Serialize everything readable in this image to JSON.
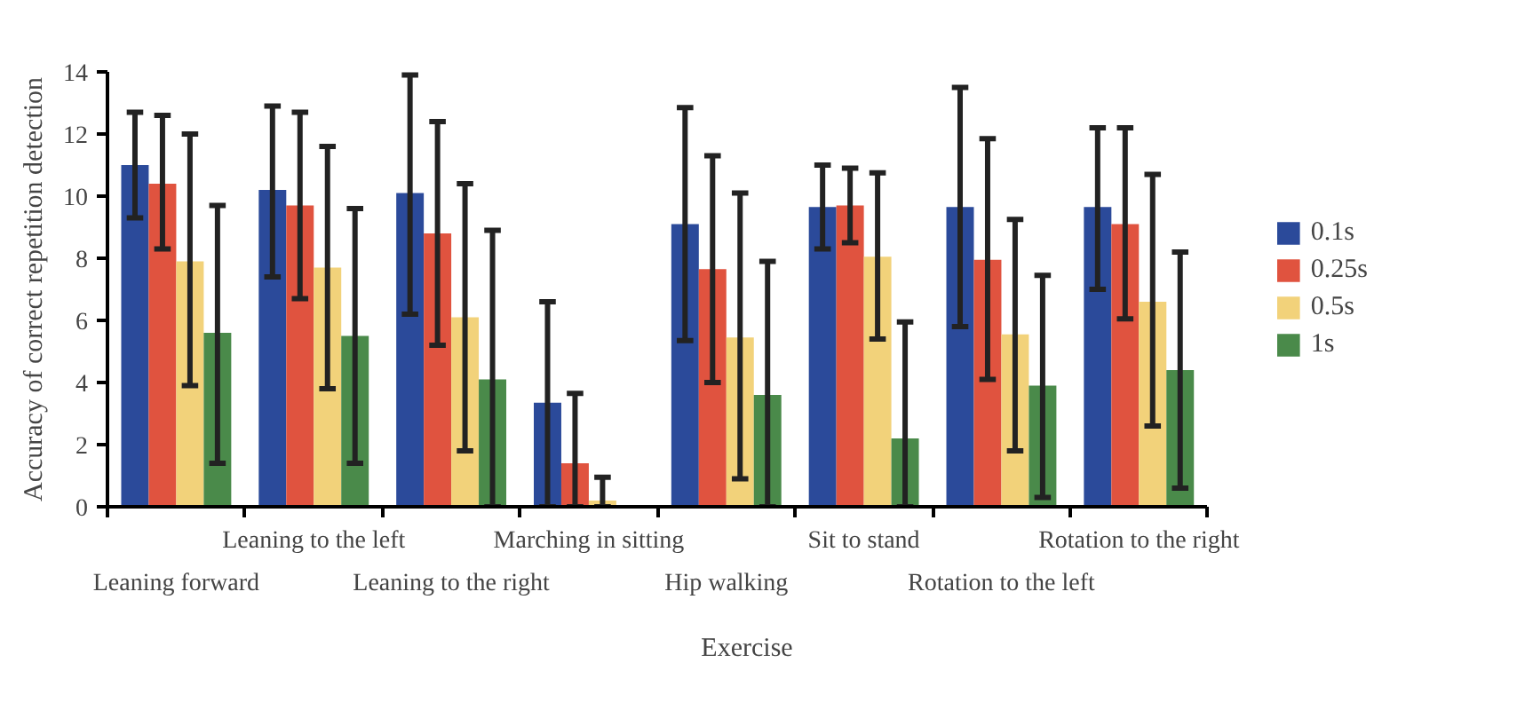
{
  "chart_data": {
    "type": "bar",
    "xlabel": "Exercise",
    "ylabel": "Accuracy of correct repetition detection",
    "categories": [
      "Leaning forward",
      "Leaning to the left",
      "Leaning to the right",
      "Marching in sitting",
      "Hip walking",
      "Sit to stand",
      "Rotation to the left",
      "Rotation to the right"
    ],
    "series": [
      {
        "name": "0.1s",
        "color": "#2b4a9a",
        "values": [
          11.0,
          10.2,
          10.1,
          3.35,
          9.1,
          9.65,
          9.65,
          9.65
        ],
        "errors": [
          [
            9.3,
            12.7
          ],
          [
            7.4,
            12.9
          ],
          [
            6.2,
            13.9
          ],
          [
            0,
            6.6
          ],
          [
            5.35,
            12.85
          ],
          [
            8.3,
            11.0
          ],
          [
            5.8,
            13.5
          ],
          [
            7.0,
            12.2
          ]
        ]
      },
      {
        "name": "0.25s",
        "color": "#e0533f",
        "values": [
          10.4,
          9.7,
          8.8,
          1.4,
          7.65,
          9.7,
          7.95,
          9.1
        ],
        "errors": [
          [
            8.3,
            12.6
          ],
          [
            6.7,
            12.7
          ],
          [
            5.2,
            12.4
          ],
          [
            0,
            3.65
          ],
          [
            4.0,
            11.3
          ],
          [
            8.5,
            10.9
          ],
          [
            4.1,
            11.85
          ],
          [
            6.05,
            12.2
          ]
        ]
      },
      {
        "name": "0.5s",
        "color": "#f2d27a",
        "values": [
          7.9,
          7.7,
          6.1,
          0.2,
          5.45,
          8.05,
          5.55,
          6.6
        ],
        "errors": [
          [
            3.9,
            12.0
          ],
          [
            3.8,
            11.6
          ],
          [
            1.8,
            10.4
          ],
          [
            0,
            0.95
          ],
          [
            0.9,
            10.1
          ],
          [
            5.4,
            10.75
          ],
          [
            1.8,
            9.25
          ],
          [
            2.6,
            10.7
          ]
        ]
      },
      {
        "name": "1s",
        "color": "#4a8a4a",
        "values": [
          5.6,
          5.5,
          4.1,
          null,
          3.6,
          2.2,
          3.9,
          4.4
        ],
        "errors": [
          [
            1.4,
            9.7
          ],
          [
            1.4,
            9.6
          ],
          [
            0,
            8.9
          ],
          null,
          [
            0,
            7.9
          ],
          [
            0,
            5.95
          ],
          [
            0.3,
            7.45
          ],
          [
            0.6,
            8.2
          ]
        ]
      }
    ],
    "ylim": [
      0,
      14
    ],
    "yticks": [
      0,
      2,
      4,
      6,
      8,
      10,
      12,
      14
    ],
    "grid": false,
    "legend": "right"
  }
}
